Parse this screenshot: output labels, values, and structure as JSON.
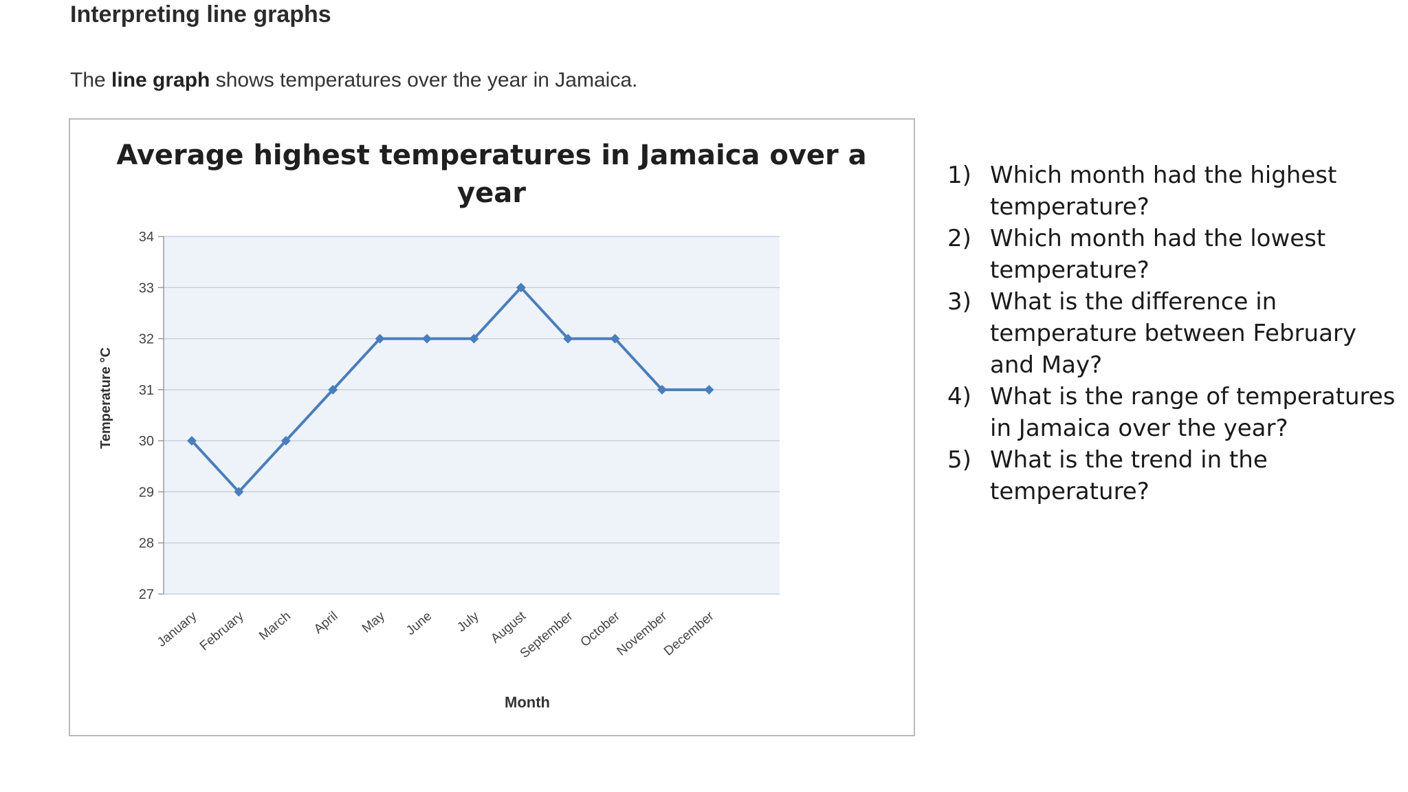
{
  "page": {
    "heading": "Interpreting line graphs",
    "intro_before": "The ",
    "intro_bold": "line graph",
    "intro_after": " shows temperatures over the year in Jamaica."
  },
  "chart_data": {
    "type": "line",
    "title_line1": "Average highest temperatures in Jamaica over a",
    "title_line2": "year",
    "xlabel": "Month",
    "ylabel": "Temperature °C",
    "categories": [
      "January",
      "February",
      "March",
      "April",
      "May",
      "June",
      "July",
      "August",
      "September",
      "October",
      "November",
      "December"
    ],
    "series": [
      {
        "values": [
          30,
          29,
          30,
          31,
          32,
          32,
          32,
          33,
          32,
          32,
          31,
          31
        ]
      }
    ],
    "ylim": [
      27,
      34
    ],
    "yticks": [
      27,
      28,
      29,
      30,
      31,
      32,
      33,
      34
    ],
    "grid": true,
    "legend": "none",
    "line_color": "#4a7ebb",
    "plot_background": "#eef3fa"
  },
  "questions": [
    {
      "number": "1)",
      "text": "Which month had the highest temperature?"
    },
    {
      "number": "2)",
      "text": "Which month had the lowest temperature?"
    },
    {
      "number": "3)",
      "text": "What is the difference in temperature between February and May?"
    },
    {
      "number": "4)",
      "text": "What is the range of temperatures in Jamaica over the year?"
    },
    {
      "number": "5)",
      "text": "What is the trend in the temperature?"
    }
  ]
}
